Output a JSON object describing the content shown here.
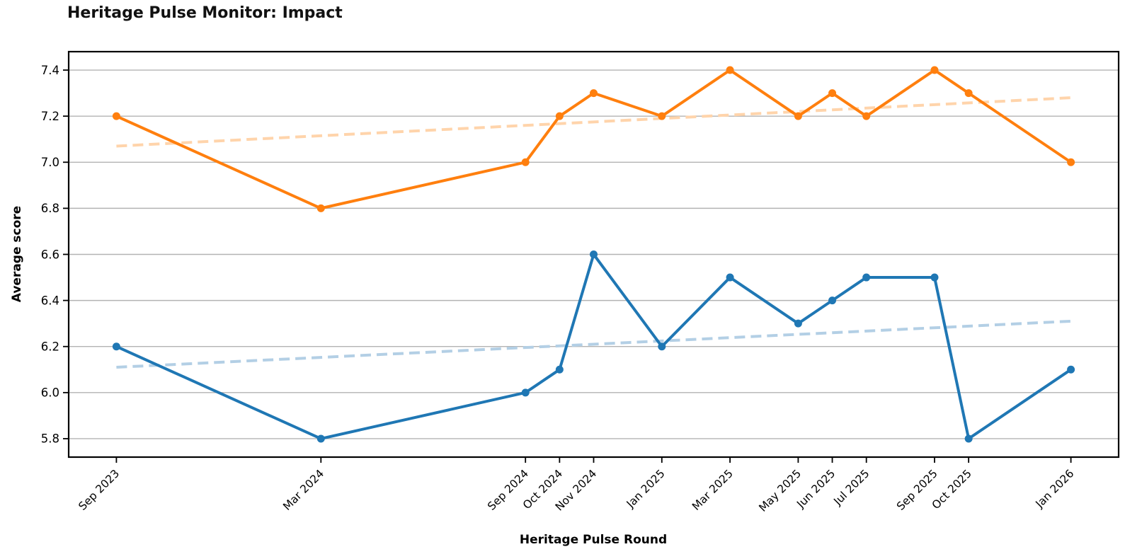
{
  "title": "Heritage Pulse Monitor: Impact",
  "chart_data": {
    "type": "line",
    "title": "Heritage Pulse Monitor: Impact",
    "xlabel": "Heritage Pulse Round",
    "ylabel": "Average score",
    "legend_position": "none",
    "grid": true,
    "background_color": "#ffffff",
    "gridline_color": "#b3b3b3",
    "spine_color": "#000000",
    "categories": [
      "Sep 2023",
      "Mar 2024",
      "Sep 2024",
      "Oct 2024",
      "Nov 2024",
      "Jan 2025",
      "Mar 2025",
      "May 2025",
      "Jun 2025",
      "Jul 2025",
      "Sep 2025",
      "Oct 2025",
      "Jan 2026"
    ],
    "x_month_offsets": [
      0,
      6,
      12,
      13,
      14,
      16,
      18,
      20,
      21,
      22,
      24,
      25,
      28
    ],
    "x_tick_rotation_deg": 45,
    "yticks": [
      5.8,
      6.0,
      6.2,
      6.4,
      6.6,
      6.8,
      7.0,
      7.2,
      7.4
    ],
    "ylim": [
      5.72,
      7.48
    ],
    "xlim_months": [
      -1.4,
      29.4
    ],
    "series": [
      {
        "id": "orange-series",
        "kind": "data",
        "color": "#ff7f0e",
        "line_style": "solid",
        "markers": true,
        "values": [
          7.2,
          6.8,
          7.0,
          7.2,
          7.3,
          7.2,
          7.4,
          7.2,
          7.3,
          7.2,
          7.4,
          7.3,
          7.0
        ]
      },
      {
        "id": "blue-series",
        "kind": "data",
        "color": "#1f77b4",
        "line_style": "solid",
        "markers": true,
        "values": [
          6.2,
          5.8,
          6.0,
          6.1,
          6.6,
          6.2,
          6.5,
          6.3,
          6.4,
          6.5,
          6.5,
          5.8,
          6.1
        ]
      },
      {
        "id": "orange-trend-line",
        "kind": "trend",
        "color": "#ffd4ab",
        "line_style": "dashed",
        "markers": false,
        "start_value": 7.07,
        "end_value": 7.28
      },
      {
        "id": "blue-trend-line",
        "kind": "trend",
        "color": "#b3cfe5",
        "line_style": "dashed",
        "markers": false,
        "start_value": 6.11,
        "end_value": 6.31
      }
    ]
  }
}
